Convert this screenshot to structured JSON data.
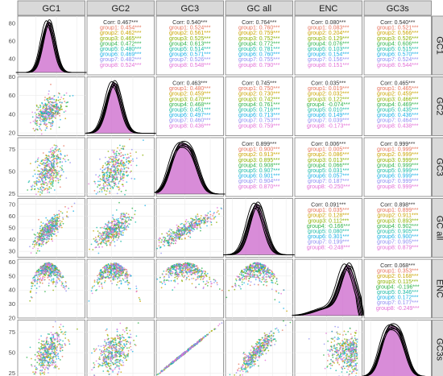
{
  "chart_data": {
    "type": "scatter",
    "layout": "pairs-matrix",
    "variables": [
      "GC1",
      "GC2",
      "GC3",
      "GC all",
      "ENC",
      "GC3s"
    ],
    "axis_ranges": {
      "GC1": [
        22,
        88
      ],
      "GC2": [
        17,
        80
      ],
      "GC3": [
        22,
        88
      ],
      "GC all": [
        25,
        75
      ],
      "ENC": [
        20,
        62
      ],
      "GC3s": [
        18,
        90
      ]
    },
    "axis_ticks": {
      "GC1": [
        20,
        40,
        60,
        80
      ],
      "GC2": [
        20,
        40,
        60,
        80
      ],
      "GC3": [
        25,
        50,
        75
      ],
      "GC all": [
        30,
        40,
        50,
        60,
        70
      ],
      "ENC": [
        20,
        30,
        40,
        50,
        60
      ],
      "GC3s": [
        25,
        50,
        75
      ]
    },
    "diag_ticks": {
      "GC1": [
        20,
        40,
        60,
        80
      ],
      "GC2": [
        20,
        40,
        60
      ],
      "GC3": [
        25,
        50,
        75
      ],
      "GC all": [
        30,
        40,
        50,
        60,
        70
      ],
      "ENC": [
        20,
        30,
        40,
        50,
        60
      ],
      "GC3s": [
        25,
        50,
        75
      ]
    },
    "groups": [
      "group1",
      "group2",
      "group3",
      "group4",
      "group5",
      "group6",
      "group7",
      "group8"
    ],
    "group_colors": [
      "#e6735c",
      "#c9a400",
      "#8cb000",
      "#2db24a",
      "#18b9a6",
      "#1ab0e6",
      "#8f8cf0",
      "#e26fd6"
    ],
    "overall_color": "#333333",
    "density_fill": "#cc66cc",
    "means": {
      "GC1": 52,
      "GC2": 42,
      "GC3": 50,
      "GC all": 48,
      "ENC": 53,
      "GC3s": 50
    },
    "sds": {
      "GC1": 6,
      "GC2": 7,
      "GC3": 11,
      "GC all": 6,
      "ENC": 5,
      "GC3s": 11
    },
    "correlations": [
      {
        "x": "GC2",
        "y": "GC1",
        "labels": [
          "Corr: 0.467***",
          "group1: 0.454***",
          "group2: 0.462***",
          "group3: 0.465***",
          "group4: 0.472***",
          "group5: 0.480***",
          "group6: 0.469***",
          "group7: 0.482***",
          "group8: 0.524***"
        ]
      },
      {
        "x": "GC3",
        "y": "GC1",
        "labels": [
          "Corr: 0.540***",
          "group1: 0.524***",
          "group2: 0.561***",
          "group3: 0.525***",
          "group4: 0.613***",
          "group5: 0.514***",
          "group6: 0.571***",
          "group7: 0.526***",
          "group8: 0.548***"
        ]
      },
      {
        "x": "GC all",
        "y": "GC1",
        "labels": [
          "Corr: 0.764***",
          "group1: 0.760***",
          "group2: 0.759***",
          "group3: 0.752***",
          "group4: 0.772***",
          "group5: 0.781***",
          "group6: 0.760***",
          "group7: 0.755***",
          "group8: 0.790***"
        ]
      },
      {
        "x": "ENC",
        "y": "GC1",
        "labels": [
          "Corr: 0.080***",
          "group1: 0.083***",
          "group2: 0.204***",
          "group3: 0.129***",
          "group4: 0.076***",
          "group5: 0.103***",
          "group6: 0.154***",
          "group7: 0.156***",
          "group8: 0.151***"
        ]
      },
      {
        "x": "GC3s",
        "y": "GC1",
        "labels": [
          "Corr: 0.540***",
          "group1: 0.521***",
          "group2: 0.566***",
          "group3: 0.526***",
          "group4: 0.606***",
          "group5: 0.515***",
          "group6: 0.570***",
          "group7: 0.524***",
          "group8: 0.544***"
        ]
      },
      {
        "x": "GC3",
        "y": "GC2",
        "labels": [
          "Corr: 0.463***",
          "group1: 0.480***",
          "group2: 0.459***",
          "group3: 0.470***",
          "group4: 0.468***",
          "group5: 0.451***",
          "group6: 0.497***",
          "group7: 0.460***",
          "group8: 0.436***"
        ]
      },
      {
        "x": "GC all",
        "y": "GC2",
        "labels": [
          "Corr: 0.745***",
          "group1: 0.750***",
          "group2: 0.730***",
          "group3: 0.742***",
          "group4: 0.761***",
          "group5: 0.716***",
          "group6: 0.713***",
          "group7: 0.753***",
          "group8: 0.759***"
        ]
      },
      {
        "x": "ENC",
        "y": "GC2",
        "labels": [
          "Corr: 0.035***",
          "group1: 0.019***",
          "group2: 0.032***",
          "group3: 0.122***",
          "group4: -0.074***",
          "group5: 0.010***",
          "group6: 0.149***",
          "group7: 0.039***",
          "group8: -0.173***"
        ]
      },
      {
        "x": "GC3s",
        "y": "GC2",
        "labels": [
          "Corr: 0.465***",
          "group1: 0.465***",
          "group2: 0.459***",
          "group3: 0.466***",
          "group4: 0.469***",
          "group5: 0.435***",
          "group6: 0.436***",
          "group7: 0.464***",
          "group8: 0.438***"
        ]
      },
      {
        "x": "GC all",
        "y": "GC3",
        "labels": [
          "Corr: 0.899***",
          "group1: 0.900***",
          "group2: 0.913***",
          "group3: 0.895***",
          "group4: 0.908***",
          "group5: 0.907***",
          "group6: 0.901***",
          "group7: 0.904***",
          "group8: 0.870***"
        ]
      },
      {
        "x": "ENC",
        "y": "GC3",
        "labels": [
          "Corr: 0.006***",
          "group1: 0.005***",
          "group2: 0.086***",
          "group3: 0.013***",
          "group4: 0.066***",
          "group5: 0.031***",
          "group6: 0.057***",
          "group7: 0.187***",
          "group8: -0.250***"
        ]
      },
      {
        "x": "GC3s",
        "y": "GC3",
        "labels": [
          "Corr: 0.999***",
          "group1: 0.999***",
          "group2: 0.999***",
          "group3: 0.999***",
          "group4: 0.999***",
          "group5: 0.999***",
          "group6: 0.999***",
          "group7: 0.999***",
          "group8: 0.999***"
        ]
      },
      {
        "x": "ENC",
        "y": "GC all",
        "labels": [
          "Corr: 0.091***",
          "group1: 0.035***",
          "group2: 0.128***",
          "group3: 0.112***",
          "group4: -0.166***",
          "group5: 0.080***",
          "group6: 0.301***",
          "group7: 0.199***",
          "group8: -0.248***"
        ]
      },
      {
        "x": "GC3s",
        "y": "GC all",
        "labels": [
          "Corr: 0.898***",
          "group1: 0.899***",
          "group2: 0.911***",
          "group3: 0.893***",
          "group4: 0.902***",
          "group5: 0.905***",
          "group6: 0.900***",
          "group7: 0.905***",
          "group8: 0.879***"
        ]
      },
      {
        "x": "GC3s",
        "y": "ENC",
        "labels": [
          "Corr: 0.068***",
          "group1: 0.353***",
          "group2: 0.168***",
          "group3: 0.115***",
          "group4: -0.196***",
          "group5: 0.346***",
          "group6: 0.172***",
          "group7: 0.177***",
          "group8: -0.249***"
        ]
      }
    ]
  }
}
